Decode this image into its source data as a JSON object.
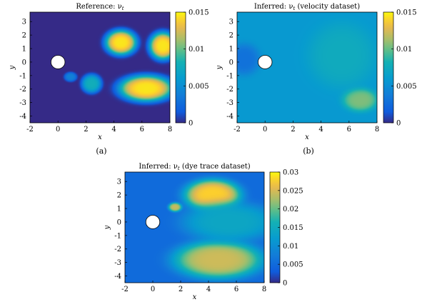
{
  "chart_data": [
    {
      "type": "heatmap",
      "panel": "(a)",
      "title": "Reference: νt",
      "xlabel": "x",
      "ylabel": "y",
      "xlim": [
        -2,
        8
      ],
      "ylim": [
        -4.5,
        3.7
      ],
      "xticks": [
        "-2",
        "0",
        "2",
        "4",
        "6",
        "8"
      ],
      "yticks": [
        "3",
        "2",
        "1",
        "0",
        "-1",
        "-2",
        "-3",
        "-4"
      ],
      "colorbar": {
        "min": 0,
        "max": 0.015,
        "ticks": [
          "0.015",
          "0.01",
          "0.005",
          "0"
        ]
      },
      "cylinder": {
        "x": 0,
        "y": 0,
        "r": 0.5
      },
      "background_value": 0.0,
      "blobs": [
        {
          "x": 4.5,
          "y": 1.45,
          "rx": 1.15,
          "ry": 0.95,
          "value": 0.0145
        },
        {
          "x": 7.5,
          "y": 1.2,
          "rx": 1.0,
          "ry": 1.05,
          "value": 0.0145
        },
        {
          "x": 6.3,
          "y": -1.95,
          "rx": 2.0,
          "ry": 1.0,
          "value": 0.0145
        },
        {
          "x": 2.4,
          "y": -1.6,
          "rx": 0.72,
          "ry": 0.7,
          "value": 0.0078
        },
        {
          "x": 0.9,
          "y": -1.1,
          "rx": 0.45,
          "ry": 0.35,
          "value": 0.004
        }
      ]
    },
    {
      "type": "heatmap",
      "panel": "(b)",
      "title": "Inferred: νt (velocity dataset)",
      "xlabel": "x",
      "ylabel": "y",
      "xlim": [
        -2,
        8
      ],
      "ylim": [
        -4.5,
        3.7
      ],
      "xticks": [
        "-2",
        "0",
        "2",
        "4",
        "6",
        "8"
      ],
      "yticks": [
        "3",
        "2",
        "1",
        "0",
        "-1",
        "-2",
        "-3",
        "-4"
      ],
      "colorbar": {
        "min": 0,
        "max": 0.015,
        "ticks": [
          "0.015",
          "0.01",
          "0.005",
          "0"
        ]
      },
      "cylinder": {
        "x": 0,
        "y": 0,
        "r": 0.5
      },
      "background_value": 0.0058,
      "blobs": [
        {
          "x": 6.8,
          "y": -2.8,
          "rx": 1.3,
          "ry": 0.9,
          "value": 0.0105
        },
        {
          "x": 5.5,
          "y": 0.5,
          "rx": 2.5,
          "ry": 2.5,
          "value": 0.0075
        },
        {
          "x": -1.5,
          "y": 0.2,
          "rx": 1.2,
          "ry": 1.2,
          "value": 0.003
        }
      ]
    },
    {
      "type": "heatmap",
      "title": "Inferred: νt (dye trace dataset)",
      "xlabel": "x",
      "ylabel": "y",
      "xlim": [
        -2,
        8
      ],
      "ylim": [
        -4.5,
        3.7
      ],
      "xticks": [
        "-2",
        "0",
        "2",
        "4",
        "6",
        "8"
      ],
      "yticks": [
        "3",
        "2",
        "1",
        "0",
        "-1",
        "-2",
        "-3",
        "-4"
      ],
      "colorbar": {
        "min": 0,
        "max": 0.03,
        "ticks": [
          "0.03",
          "0.025",
          "0.02",
          "0.015",
          "0.01",
          "0.005",
          "0"
        ]
      },
      "cylinder": {
        "x": 0,
        "y": 0,
        "r": 0.5
      },
      "background_value": 0.005,
      "blobs": [
        {
          "x": 4.3,
          "y": 2.0,
          "rx": 2.1,
          "ry": 1.2,
          "value": 0.028
        },
        {
          "x": 4.7,
          "y": -2.8,
          "rx": 3.3,
          "ry": 1.45,
          "value": 0.0245
        },
        {
          "x": 5.5,
          "y": 0.0,
          "rx": 3.5,
          "ry": 1.5,
          "value": 0.014
        },
        {
          "x": 1.6,
          "y": 1.1,
          "rx": 0.5,
          "ry": 0.35,
          "value": 0.024
        }
      ]
    }
  ]
}
